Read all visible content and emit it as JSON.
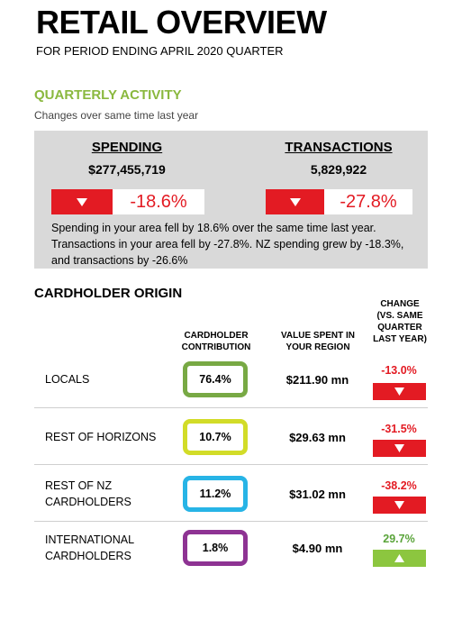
{
  "header": {
    "title": "RETAIL OVERVIEW",
    "subtitle": "FOR PERIOD ENDING APRIL 2020 QUARTER"
  },
  "quarterly_activity": {
    "heading": "QUARTERLY ACTIVITY",
    "subheading": "Changes over same time last year",
    "items": [
      {
        "label": "SPENDING",
        "value": "$277,455,719",
        "change": "-18.6%"
      },
      {
        "label": "TRANSACTIONS",
        "value": "5,829,922",
        "change": "-27.8%"
      }
    ],
    "note": "Spending in your area fell by 18.6% over the same time last year. Transactions in your area fell by -27.8%.  NZ spending grew by -18.3%, and transactions by -26.6%"
  },
  "cardholder_origin": {
    "heading": "CARDHOLDER ORIGIN",
    "columns": [
      "CARDHOLDER CONTRIBUTION",
      "VALUE SPENT IN YOUR REGION",
      "CHANGE (VS. SAME QUARTER LAST YEAR)"
    ],
    "rows": [
      {
        "label": "LOCALS",
        "contribution": "76.4%",
        "value": "$211.90 mn",
        "change": "-13.0%"
      },
      {
        "label": "REST OF HORIZONS",
        "contribution": "10.7%",
        "value": "$29.63 mn",
        "change": "-31.5%"
      },
      {
        "label": "REST OF NZ CARDHOLDERS",
        "contribution": "11.2%",
        "value": "$31.02 mn",
        "change": "-38.2%"
      },
      {
        "label": "INTERNATIONAL CARDHOLDERS",
        "contribution": "1.8%",
        "value": "$4.90 mn",
        "change": "29.7%"
      }
    ]
  }
}
